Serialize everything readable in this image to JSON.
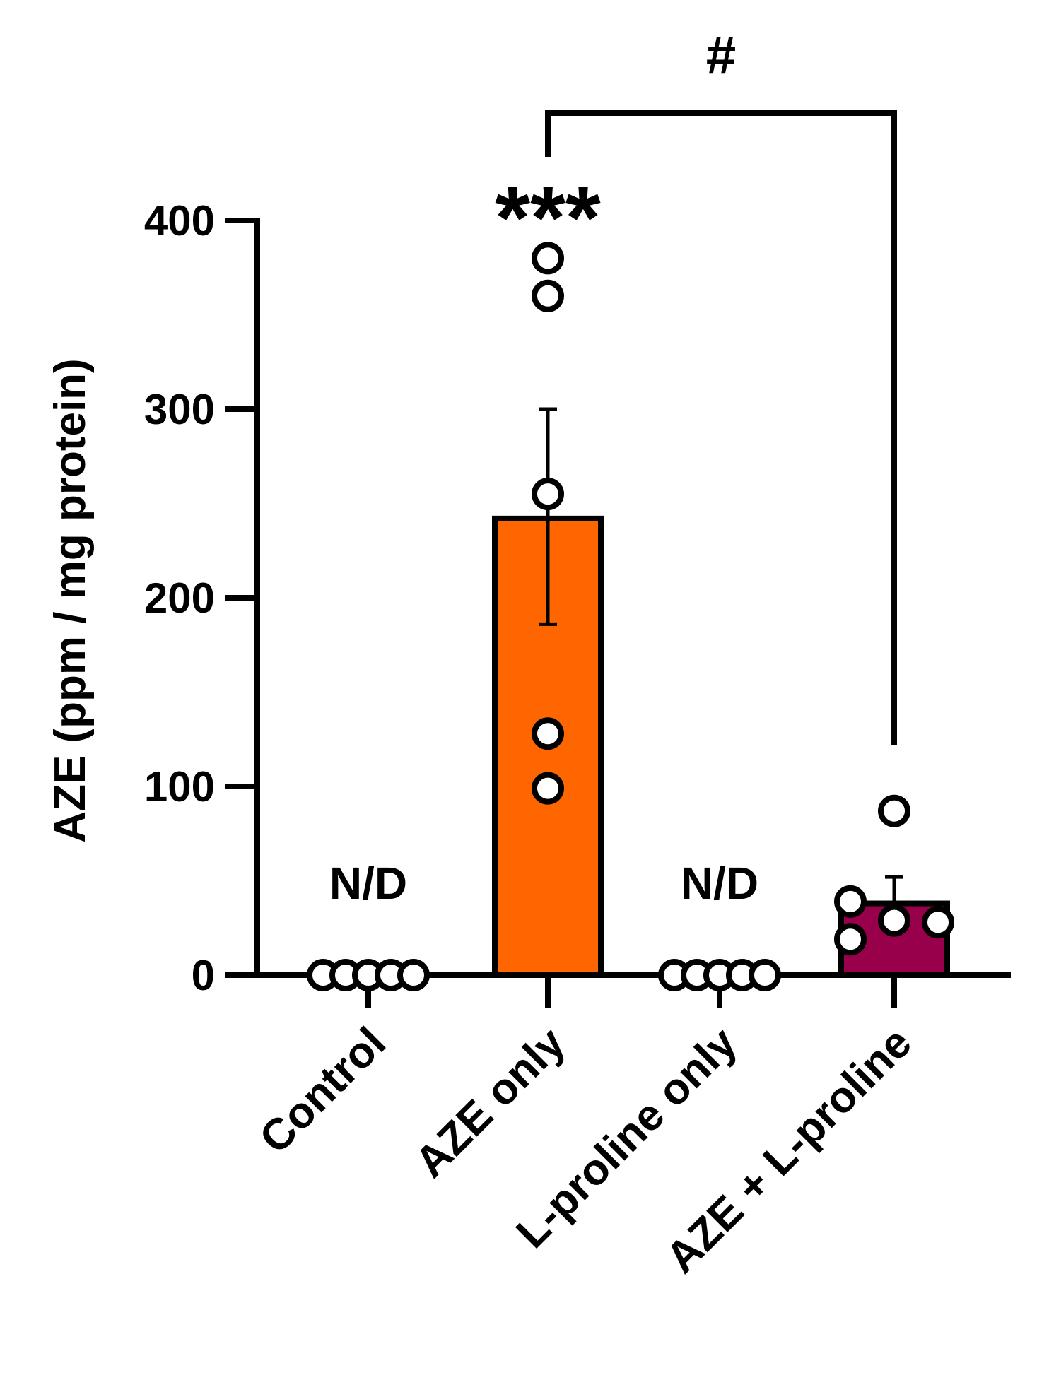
{
  "chart_data": {
    "type": "bar",
    "categories": [
      "Control",
      "AZE only",
      "L-proline only",
      "AZE + L-proline"
    ],
    "values": [
      0,
      242,
      0,
      38
    ],
    "error_bars": [
      {
        "low": null,
        "high": null
      },
      {
        "low": 186,
        "high": 300
      },
      {
        "low": null,
        "high": null
      },
      {
        "low": null,
        "high": 52
      }
    ],
    "points": [
      [
        0,
        0,
        0,
        0,
        0
      ],
      [
        380,
        360,
        255,
        128,
        99
      ],
      [
        0,
        0,
        0,
        0,
        0
      ],
      [
        87,
        39,
        29,
        28,
        19
      ]
    ],
    "bar_colors": [
      "#ffffff",
      "#ff6600",
      "#ffffff",
      "#99004c"
    ],
    "value_labels": [
      "N/D",
      "",
      "N/D",
      ""
    ],
    "significance": {
      "above_bar": {
        "category": "AZE only",
        "label": "***"
      },
      "bracket": {
        "from": "AZE only",
        "to": "AZE + L-proline",
        "label": "#"
      }
    },
    "ylabel": "AZE (ppm / mg protein)",
    "xlabel": "",
    "yticks": [
      0,
      100,
      200,
      300,
      400
    ],
    "ylim": [
      0,
      400
    ],
    "grid": false,
    "legend": "none"
  }
}
